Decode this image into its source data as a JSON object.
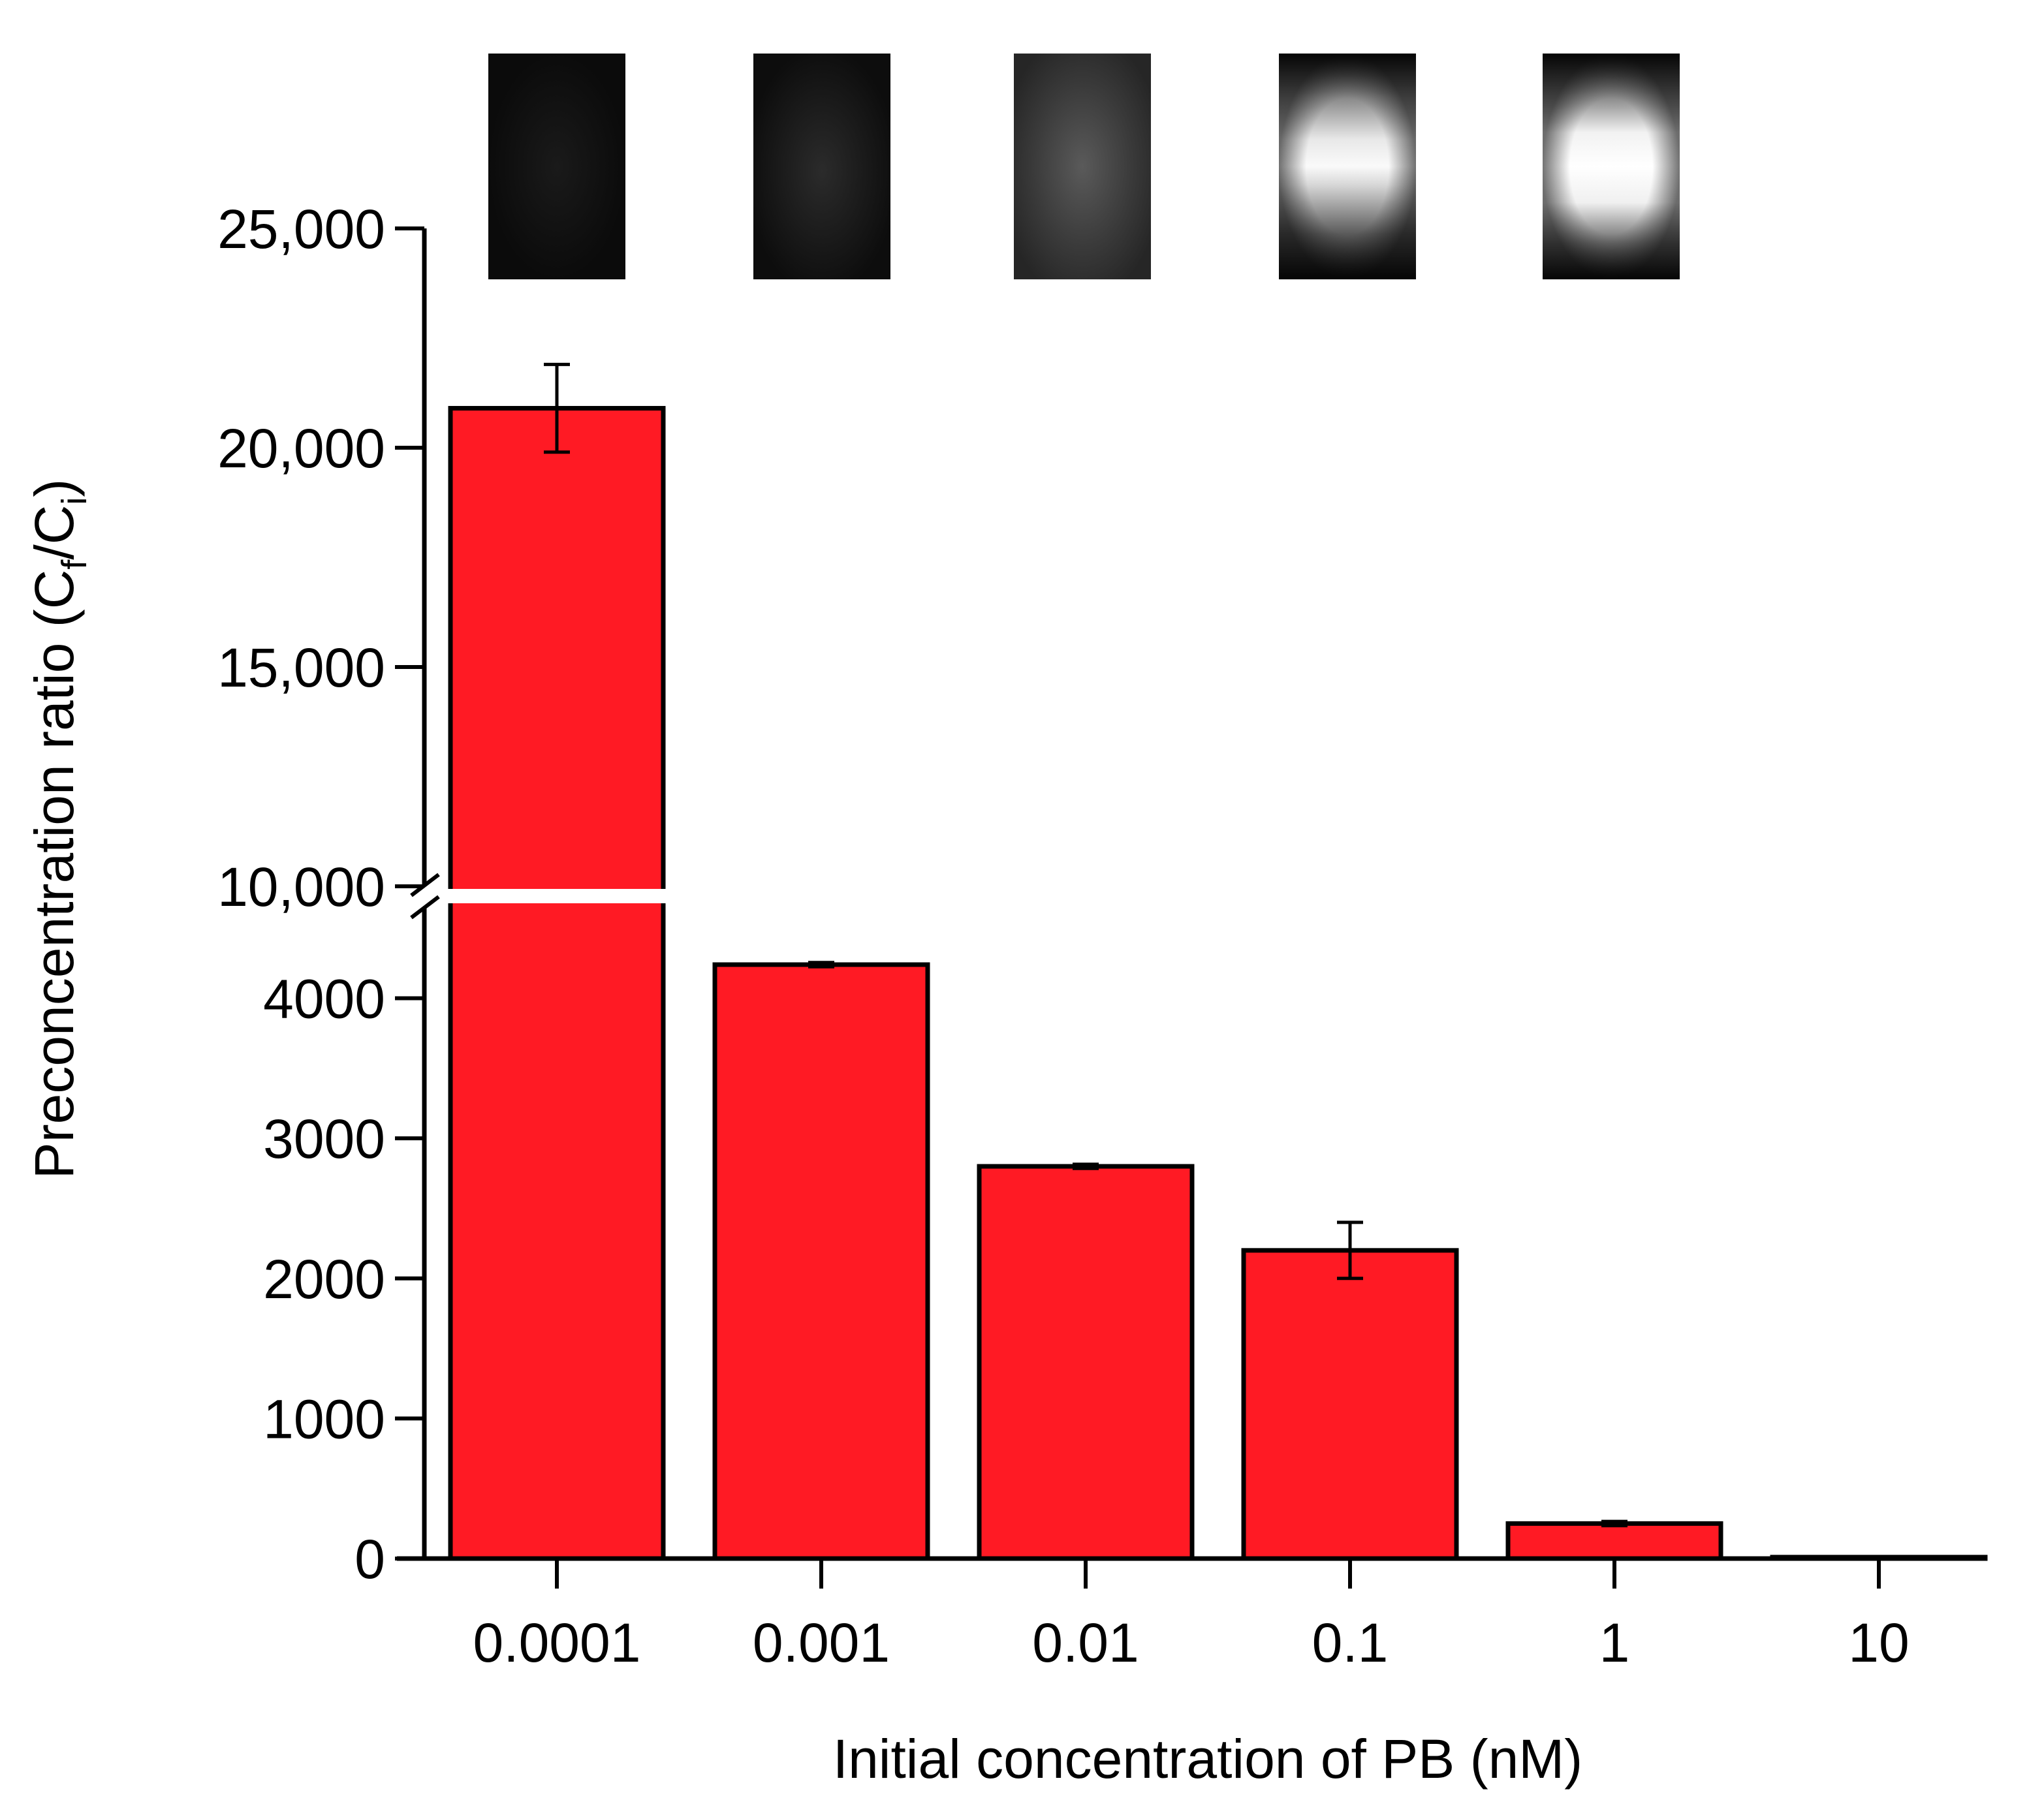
{
  "chart_data": {
    "type": "bar",
    "xlabel": "Initial concentration of PB (nM)",
    "ylabel": {
      "main": "Preconcentration ratio (C",
      "sub1": "f",
      "mid": "/C",
      "sub2": "i",
      "end": ")"
    },
    "categories": [
      "0.0001",
      "0.001",
      "0.01",
      "0.1",
      "1",
      "10"
    ],
    "values": [
      20900,
      4240,
      2800,
      2200,
      250,
      10
    ],
    "errors": [
      1000,
      15,
      15,
      200,
      15,
      0
    ],
    "y_axis_broken": true,
    "y_lower_range": [
      0,
      4650
    ],
    "y_upper_range": [
      10000,
      25000
    ],
    "y_lower_ticks": [
      "0",
      "1000",
      "2000",
      "3000",
      "4000"
    ],
    "y_upper_ticks": [
      "10,000",
      "15,000",
      "20,000",
      "25,000"
    ],
    "y_lower_tick_values": [
      0,
      1000,
      2000,
      3000,
      4000
    ],
    "y_upper_tick_values": [
      10000,
      15000,
      20000,
      25000
    ],
    "bar_color": "#ff1a24",
    "inset_images": {
      "count": 5,
      "brightness": [
        "very dark",
        "dark",
        "dim glow",
        "bright band",
        "very bright band"
      ]
    }
  }
}
